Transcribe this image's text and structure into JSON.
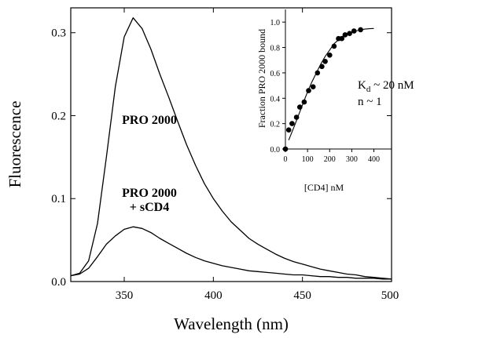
{
  "chart_data": [
    {
      "type": "line",
      "xlabel": "Wavelength (nm)",
      "ylabel": "Fluorescence",
      "xlim": [
        320,
        500
      ],
      "ylim": [
        0.0,
        0.33
      ],
      "xticks": [
        350,
        400,
        450,
        500
      ],
      "yticks": [
        0.0,
        0.1,
        0.2,
        0.3
      ],
      "xtick_labels": [
        "350",
        "400",
        "450",
        "500"
      ],
      "ytick_labels": [
        "0.0",
        "0.1",
        "0.2",
        "0.3"
      ],
      "grid": false,
      "series": [
        {
          "name": "PRO 2000",
          "x": [
            320,
            325,
            330,
            335,
            340,
            345,
            350,
            355,
            360,
            365,
            370,
            375,
            380,
            385,
            390,
            395,
            400,
            405,
            410,
            415,
            420,
            425,
            430,
            435,
            440,
            445,
            450,
            455,
            460,
            465,
            470,
            475,
            480,
            485,
            490,
            495,
            500
          ],
          "y": [
            0.007,
            0.01,
            0.025,
            0.07,
            0.15,
            0.235,
            0.295,
            0.318,
            0.305,
            0.28,
            0.25,
            0.222,
            0.193,
            0.165,
            0.14,
            0.118,
            0.1,
            0.085,
            0.072,
            0.062,
            0.052,
            0.045,
            0.039,
            0.033,
            0.028,
            0.024,
            0.021,
            0.018,
            0.015,
            0.013,
            0.011,
            0.009,
            0.008,
            0.006,
            0.005,
            0.004,
            0.003
          ]
        },
        {
          "name": "PRO 2000 + sCD4",
          "x": [
            320,
            325,
            330,
            335,
            340,
            345,
            350,
            355,
            360,
            365,
            370,
            375,
            380,
            385,
            390,
            395,
            400,
            405,
            410,
            415,
            420,
            425,
            430,
            435,
            440,
            445,
            450,
            455,
            460,
            465,
            470,
            475,
            480,
            485,
            490,
            495,
            500
          ],
          "y": [
            0.007,
            0.009,
            0.016,
            0.03,
            0.045,
            0.055,
            0.063,
            0.066,
            0.064,
            0.059,
            0.052,
            0.046,
            0.04,
            0.034,
            0.029,
            0.025,
            0.022,
            0.019,
            0.017,
            0.015,
            0.013,
            0.012,
            0.011,
            0.01,
            0.009,
            0.008,
            0.008,
            0.007,
            0.006,
            0.006,
            0.005,
            0.005,
            0.004,
            0.004,
            0.004,
            0.003,
            0.003
          ]
        }
      ],
      "annotations": [
        {
          "text": "PRO 2000",
          "x": 370,
          "y": 0.2
        },
        {
          "text": "PRO 2000",
          "x": 370,
          "y": 0.098
        },
        {
          "text": "+ sCD4",
          "x": 370,
          "y": 0.082
        }
      ]
    },
    {
      "type": "scatter",
      "xlabel": "[CD4] nM",
      "ylabel": "Fraction PRO 2000 bound",
      "xlim": [
        0,
        480
      ],
      "ylim": [
        0.0,
        1.1
      ],
      "xticks": [
        0,
        100,
        200,
        300,
        400
      ],
      "yticks": [
        0.0,
        0.2,
        0.4,
        0.6,
        0.8,
        1.0
      ],
      "xtick_labels": [
        "0",
        "100",
        "200",
        "300",
        "400"
      ],
      "ytick_labels": [
        "0.0",
        "0.2",
        "0.4",
        "0.6",
        "0.8",
        "1.0"
      ],
      "grid": false,
      "points": {
        "x": [
          0,
          15,
          30,
          50,
          65,
          85,
          105,
          125,
          145,
          165,
          180,
          200,
          220,
          240,
          255,
          270,
          290,
          310,
          340
        ],
        "y": [
          0.0,
          0.15,
          0.2,
          0.25,
          0.33,
          0.37,
          0.46,
          0.49,
          0.6,
          0.65,
          0.69,
          0.74,
          0.81,
          0.87,
          0.87,
          0.9,
          0.91,
          0.93,
          0.94
        ]
      },
      "fit": {
        "x": [
          15,
          40,
          60,
          80,
          100,
          120,
          140,
          160,
          180,
          200,
          220,
          240,
          260,
          280,
          300,
          320,
          340,
          360,
          380,
          400
        ],
        "y": [
          0.07,
          0.18,
          0.27,
          0.36,
          0.45,
          0.53,
          0.6,
          0.67,
          0.73,
          0.78,
          0.83,
          0.86,
          0.89,
          0.91,
          0.92,
          0.93,
          0.94,
          0.945,
          0.948,
          0.95
        ]
      },
      "annotations": [
        {
          "text_main": "K",
          "text_sub": "d",
          "text_tail": " ~ 20 nM"
        },
        {
          "text": "n ~ 1"
        }
      ]
    }
  ]
}
